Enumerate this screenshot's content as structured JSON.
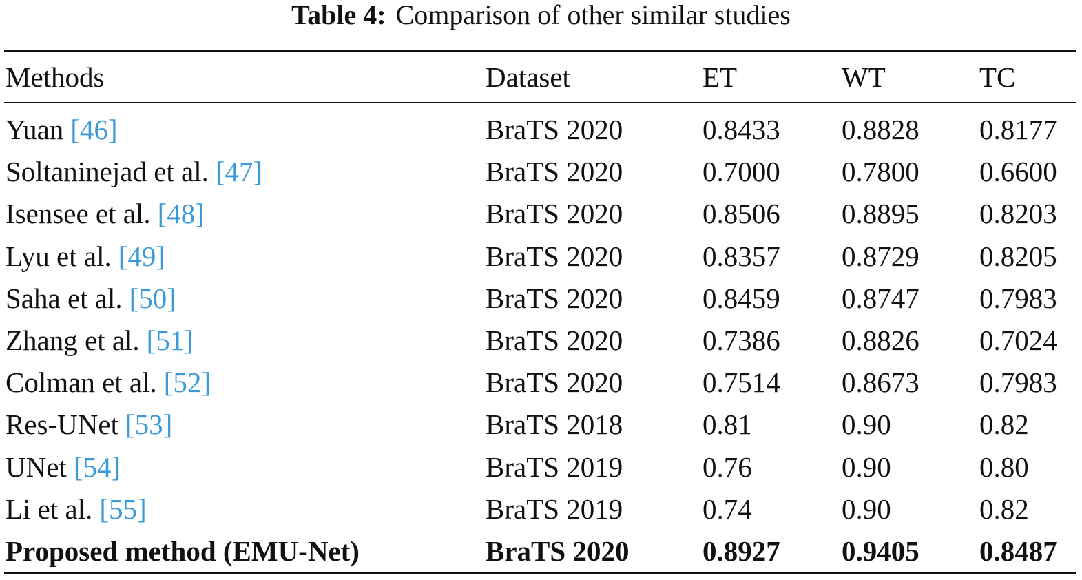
{
  "title": {
    "label": "Table 4:",
    "text": "Comparison of other similar studies"
  },
  "table": {
    "header": [
      "Methods",
      "Dataset",
      "ET",
      "WT",
      "TC"
    ],
    "bold_row": 10,
    "rows": [
      {
        "method": "Yuan",
        "ref": "[46]",
        "dataset": "BraTS 2020",
        "values": [
          "0.8433",
          "0.8828",
          "0.8177"
        ]
      },
      {
        "method": "Soltaninejad et al.",
        "ref": "[47]",
        "dataset": "BraTS 2020",
        "values": [
          "0.7000",
          "0.7800",
          "0.6600"
        ]
      },
      {
        "method": "Isensee et al.",
        "ref": "[48]",
        "dataset": "BraTS 2020",
        "values": [
          "0.8506",
          "0.8895",
          "0.8203"
        ]
      },
      {
        "method": "Lyu et al.",
        "ref": "[49]",
        "dataset": "BraTS 2020",
        "values": [
          "0.8357",
          "0.8729",
          "0.8205"
        ]
      },
      {
        "method": "Saha et al.",
        "ref": "[50]",
        "dataset": "BraTS 2020",
        "values": [
          "0.8459",
          "0.8747",
          "0.7983"
        ]
      },
      {
        "method": "Zhang et al.",
        "ref": "[51]",
        "dataset": "BraTS 2020",
        "values": [
          "0.7386",
          "0.8826",
          "0.7024"
        ]
      },
      {
        "method": "Colman et al.",
        "ref": "[52]",
        "dataset": "BraTS 2020",
        "values": [
          "0.7514",
          "0.8673",
          "0.7983"
        ]
      },
      {
        "method": "Res-UNet",
        "ref": "[53]",
        "dataset": "BraTS 2018",
        "values": [
          "0.81",
          "0.90",
          "0.82"
        ]
      },
      {
        "method": "UNet",
        "ref": "[54]",
        "dataset": "BraTS 2019",
        "values": [
          "0.76",
          "0.90",
          "0.80"
        ]
      },
      {
        "method": "Li et al.",
        "ref": "[55]",
        "dataset": "BraTS 2019",
        "values": [
          "0.74",
          "0.90",
          "0.82"
        ]
      },
      {
        "method": "Proposed method (EMU-Net)",
        "dataset": "BraTS 2020",
        "values": [
          "0.8927",
          "0.9405",
          "0.8487"
        ]
      }
    ]
  }
}
